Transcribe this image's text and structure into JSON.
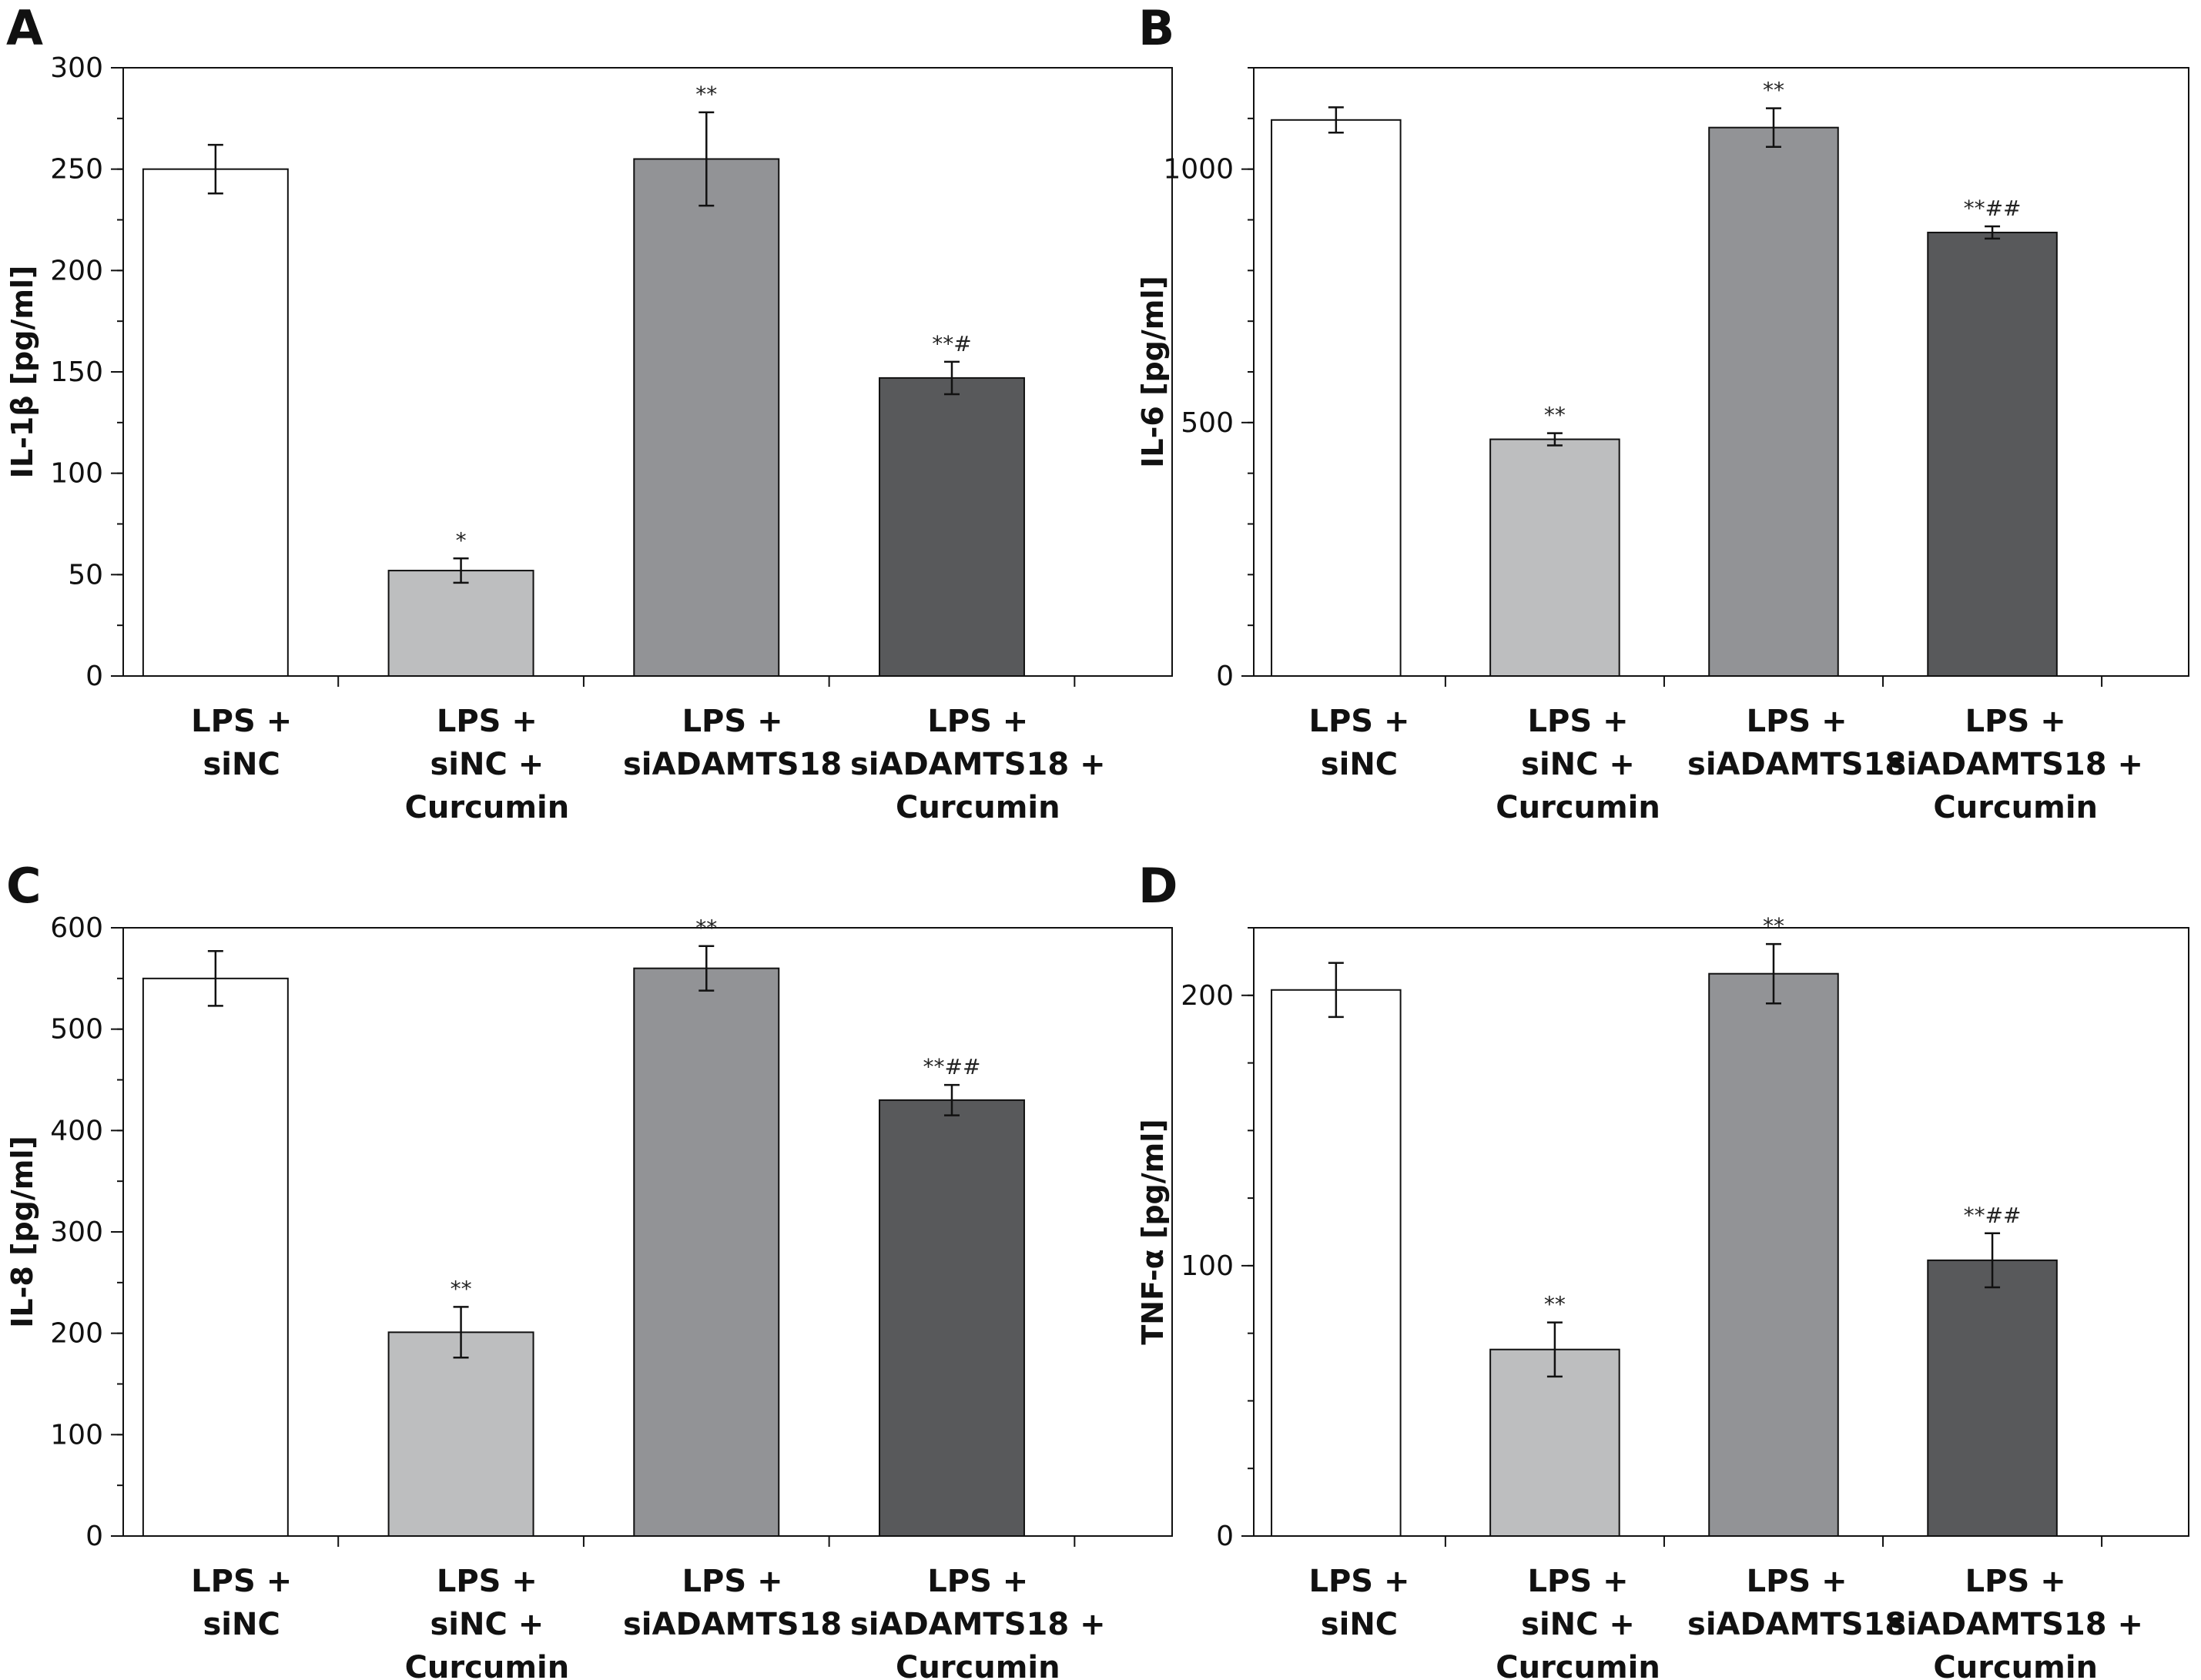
{
  "chart_data": [
    {
      "panel": "A",
      "type": "bar",
      "ylabel": "IL-1β [pg/ml]",
      "ylim": [
        0,
        300
      ],
      "yticks": [
        0,
        50,
        100,
        150,
        200,
        250,
        300
      ],
      "minor_step": 25,
      "categories": [
        [
          "LPS +",
          "siNC"
        ],
        [
          "LPS +",
          "siNC +",
          "Curcumin"
        ],
        [
          "LPS +",
          "siADAMTS18"
        ],
        [
          "LPS +",
          "siADAMTS18 +",
          "Curcumin"
        ]
      ],
      "values": [
        250,
        52,
        255,
        147
      ],
      "errors": [
        12,
        6,
        23,
        8
      ],
      "annotations": [
        "",
        "*",
        "**",
        "**#"
      ],
      "colors": [
        "#ffffff",
        "#bdbebf",
        "#929396",
        "#58595b"
      ]
    },
    {
      "panel": "B",
      "type": "bar",
      "ylabel": "IL-6 [pg/ml]",
      "ylim": [
        0,
        1200
      ],
      "yticks": [
        0,
        500,
        1000
      ],
      "minor_step": 100,
      "categories": [
        [
          "LPS +",
          "siNC"
        ],
        [
          "LPS +",
          "siNC +",
          "Curcumin"
        ],
        [
          "LPS +",
          "siADAMTS18"
        ],
        [
          "LPS +",
          "siADAMTS18 +",
          "Curcumin"
        ]
      ],
      "values": [
        1097,
        467,
        1082,
        875
      ],
      "errors": [
        25,
        12,
        38,
        12
      ],
      "annotations": [
        "",
        "**",
        "**",
        "**##"
      ],
      "colors": [
        "#ffffff",
        "#bdbebf",
        "#929396",
        "#58595b"
      ]
    },
    {
      "panel": "C",
      "type": "bar",
      "ylabel": "IL-8 [pg/ml]",
      "ylim": [
        0,
        600
      ],
      "yticks": [
        0,
        100,
        200,
        300,
        400,
        500,
        600
      ],
      "minor_step": 50,
      "categories": [
        [
          "LPS +",
          "siNC"
        ],
        [
          "LPS +",
          "siNC +",
          "Curcumin"
        ],
        [
          "LPS +",
          "siADAMTS18"
        ],
        [
          "LPS +",
          "siADAMTS18 +",
          "Curcumin"
        ]
      ],
      "values": [
        550,
        201,
        560,
        430
      ],
      "errors": [
        27,
        25,
        22,
        15
      ],
      "annotations": [
        "",
        "**",
        "**",
        "**##"
      ],
      "colors": [
        "#ffffff",
        "#bdbebf",
        "#929396",
        "#58595b"
      ]
    },
    {
      "panel": "D",
      "type": "bar",
      "ylabel": "TNF-α [pg/ml]",
      "ylim": [
        0,
        225
      ],
      "yticks": [
        0,
        100,
        200
      ],
      "minor_step": 25,
      "categories": [
        [
          "LPS +",
          "siNC"
        ],
        [
          "LPS +",
          "siNC +",
          "Curcumin"
        ],
        [
          "LPS +",
          "siADAMTS18"
        ],
        [
          "LPS +",
          "siADAMTS18 +",
          "Curcumin"
        ]
      ],
      "values": [
        202,
        69,
        208,
        102
      ],
      "errors": [
        10,
        10,
        11,
        10
      ],
      "annotations": [
        "",
        "**",
        "**",
        "**##"
      ],
      "colors": [
        "#ffffff",
        "#bdbebf",
        "#929396",
        "#58595b"
      ]
    }
  ]
}
